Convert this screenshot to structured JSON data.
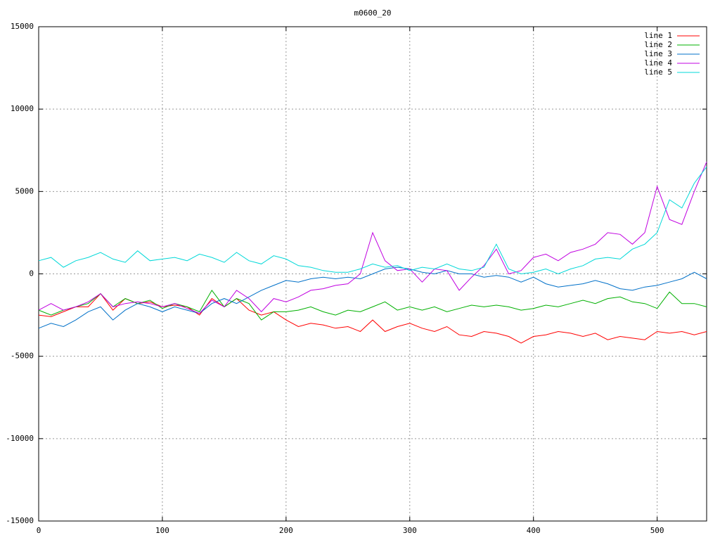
{
  "chart_data": {
    "type": "line",
    "title": "m0600_20",
    "x": [
      0,
      10,
      20,
      30,
      40,
      50,
      60,
      70,
      80,
      90,
      100,
      110,
      120,
      130,
      140,
      150,
      160,
      170,
      180,
      190,
      200,
      210,
      220,
      230,
      240,
      250,
      260,
      270,
      280,
      290,
      300,
      310,
      320,
      330,
      340,
      350,
      360,
      370,
      380,
      390,
      400,
      410,
      420,
      430,
      440,
      450,
      460,
      470,
      480,
      490,
      500,
      510,
      520,
      530,
      540
    ],
    "series": [
      {
        "name": "line 1",
        "color": "#ff0000",
        "values": [
          -2500,
          -2600,
          -2300,
          -2000,
          -2000,
          -1200,
          -2200,
          -1500,
          -1800,
          -1700,
          -2000,
          -1900,
          -2000,
          -2500,
          -1500,
          -2000,
          -1500,
          -2200,
          -2500,
          -2300,
          -2800,
          -3200,
          -3000,
          -3100,
          -3300,
          -3200,
          -3500,
          -2800,
          -3500,
          -3200,
          -3000,
          -3300,
          -3500,
          -3200,
          -3700,
          -3800,
          -3500,
          -3600,
          -3800,
          -4200,
          -3800,
          -3700,
          -3500,
          -3600,
          -3800,
          -3600,
          -4000,
          -3800,
          -3900,
          -4000,
          -3500,
          -3600,
          -3500,
          -3700,
          -3500
        ]
      },
      {
        "name": "line 2",
        "color": "#00b000",
        "values": [
          -2200,
          -2500,
          -2200,
          -2000,
          -1800,
          -1200,
          -2000,
          -1500,
          -1800,
          -1600,
          -2100,
          -1800,
          -2000,
          -2300,
          -1000,
          -2000,
          -1500,
          -1800,
          -2800,
          -2300,
          -2300,
          -2200,
          -2000,
          -2300,
          -2500,
          -2200,
          -2300,
          -2000,
          -1700,
          -2200,
          -2000,
          -2200,
          -2000,
          -2300,
          -2100,
          -1900,
          -2000,
          -1900,
          -2000,
          -2200,
          -2100,
          -1900,
          -2000,
          -1800,
          -1600,
          -1800,
          -1500,
          -1400,
          -1700,
          -1800,
          -2100,
          -1100,
          -1800,
          -1800,
          -2000
        ]
      },
      {
        "name": "line 3",
        "color": "#0070c8",
        "values": [
          -3300,
          -3000,
          -3200,
          -2800,
          -2300,
          -2000,
          -2800,
          -2200,
          -1800,
          -2000,
          -2300,
          -2000,
          -2200,
          -2400,
          -1800,
          -1500,
          -1800,
          -1400,
          -1000,
          -700,
          -400,
          -500,
          -300,
          -200,
          -300,
          -200,
          -300,
          0,
          300,
          400,
          300,
          100,
          0,
          200,
          0,
          0,
          -200,
          -100,
          -200,
          -500,
          -200,
          -600,
          -800,
          -700,
          -600,
          -400,
          -600,
          -900,
          -1000,
          -800,
          -700,
          -500,
          -300,
          100,
          -300
        ]
      },
      {
        "name": "line 4",
        "color": "#c000e0",
        "values": [
          -2200,
          -1800,
          -2200,
          -2000,
          -1700,
          -1200,
          -2000,
          -1800,
          -1700,
          -1800,
          -2000,
          -1800,
          -2100,
          -2400,
          -1600,
          -2000,
          -1000,
          -1500,
          -2300,
          -1500,
          -1700,
          -1400,
          -1000,
          -900,
          -700,
          -600,
          0,
          2500,
          800,
          200,
          300,
          -500,
          300,
          200,
          -1000,
          -200,
          500,
          1500,
          0,
          200,
          1000,
          1200,
          800,
          1300,
          1500,
          1800,
          2500,
          2400,
          1800,
          2500,
          5300,
          3300,
          3000,
          5000,
          6800
        ]
      },
      {
        "name": "line 5",
        "color": "#00d8d8",
        "values": [
          800,
          1000,
          400,
          800,
          1000,
          1300,
          900,
          700,
          1400,
          800,
          900,
          1000,
          800,
          1200,
          1000,
          700,
          1300,
          800,
          600,
          1100,
          900,
          500,
          400,
          200,
          100,
          100,
          300,
          600,
          400,
          500,
          200,
          400,
          300,
          600,
          300,
          200,
          400,
          1800,
          300,
          0,
          100,
          300,
          0,
          300,
          500,
          900,
          1000,
          900,
          1500,
          1800,
          2500,
          4500,
          4000,
          5500,
          6500
        ]
      }
    ],
    "xlim": [
      0,
      540
    ],
    "ylim": [
      -15000,
      15000
    ],
    "xticks": [
      0,
      100,
      200,
      300,
      400,
      500
    ],
    "yticks": [
      -15000,
      -10000,
      -5000,
      0,
      5000,
      10000,
      15000
    ],
    "grid": true,
    "legend": "top-right"
  }
}
